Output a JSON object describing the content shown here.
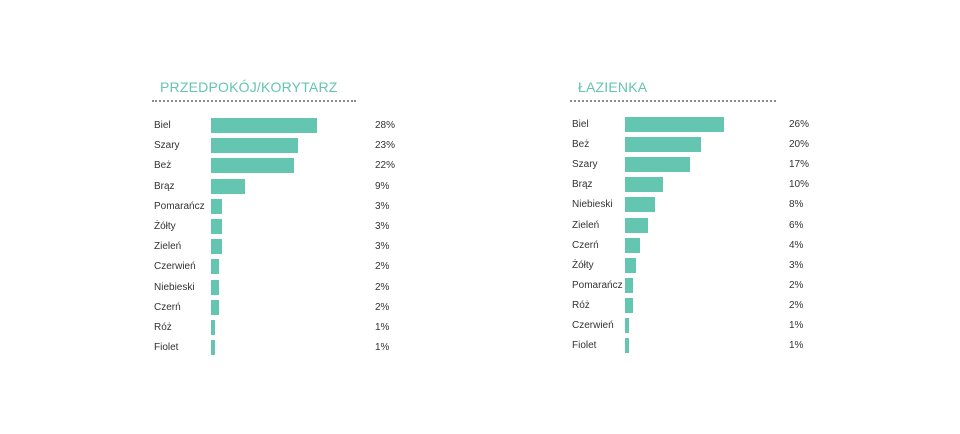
{
  "colors": {
    "bar": "#64c5b1",
    "title": "#64c5b1"
  },
  "chart_data": [
    {
      "type": "bar",
      "orientation": "horizontal",
      "title": "PRZEDPOKÓJ/KORYTARZ",
      "categories": [
        "Biel",
        "Szary",
        "Beż",
        "Brąz",
        "Pomarańcz",
        "Żółty",
        "Zieleń",
        "Czerwień",
        "Niebieski",
        "Czerń",
        "Róż",
        "Fiolet"
      ],
      "values": [
        28,
        23,
        22,
        9,
        3,
        3,
        3,
        2,
        2,
        2,
        1,
        1
      ],
      "value_labels": [
        "28%",
        "23%",
        "22%",
        "9%",
        "3%",
        "3%",
        "3%",
        "2%",
        "2%",
        "2%",
        "1%",
        "1%"
      ],
      "xlim": [
        0,
        28
      ],
      "grid": false,
      "legend": "none"
    },
    {
      "type": "bar",
      "orientation": "horizontal",
      "title": "ŁAZIENKA",
      "categories": [
        "Biel",
        "Beż",
        "Szary",
        "Brąz",
        "Niebieski",
        "Zieleń",
        "Czerń",
        "Żółty",
        "Pomarańcz",
        "Róż",
        "Czerwień",
        "Fiolet"
      ],
      "values": [
        26,
        20,
        17,
        10,
        8,
        6,
        4,
        3,
        2,
        2,
        1,
        1
      ],
      "value_labels": [
        "26%",
        "20%",
        "17%",
        "10%",
        "8%",
        "6%",
        "4%",
        "3%",
        "2%",
        "2%",
        "1%",
        "1%"
      ],
      "xlim": [
        0,
        26
      ],
      "grid": false,
      "legend": "none"
    }
  ]
}
